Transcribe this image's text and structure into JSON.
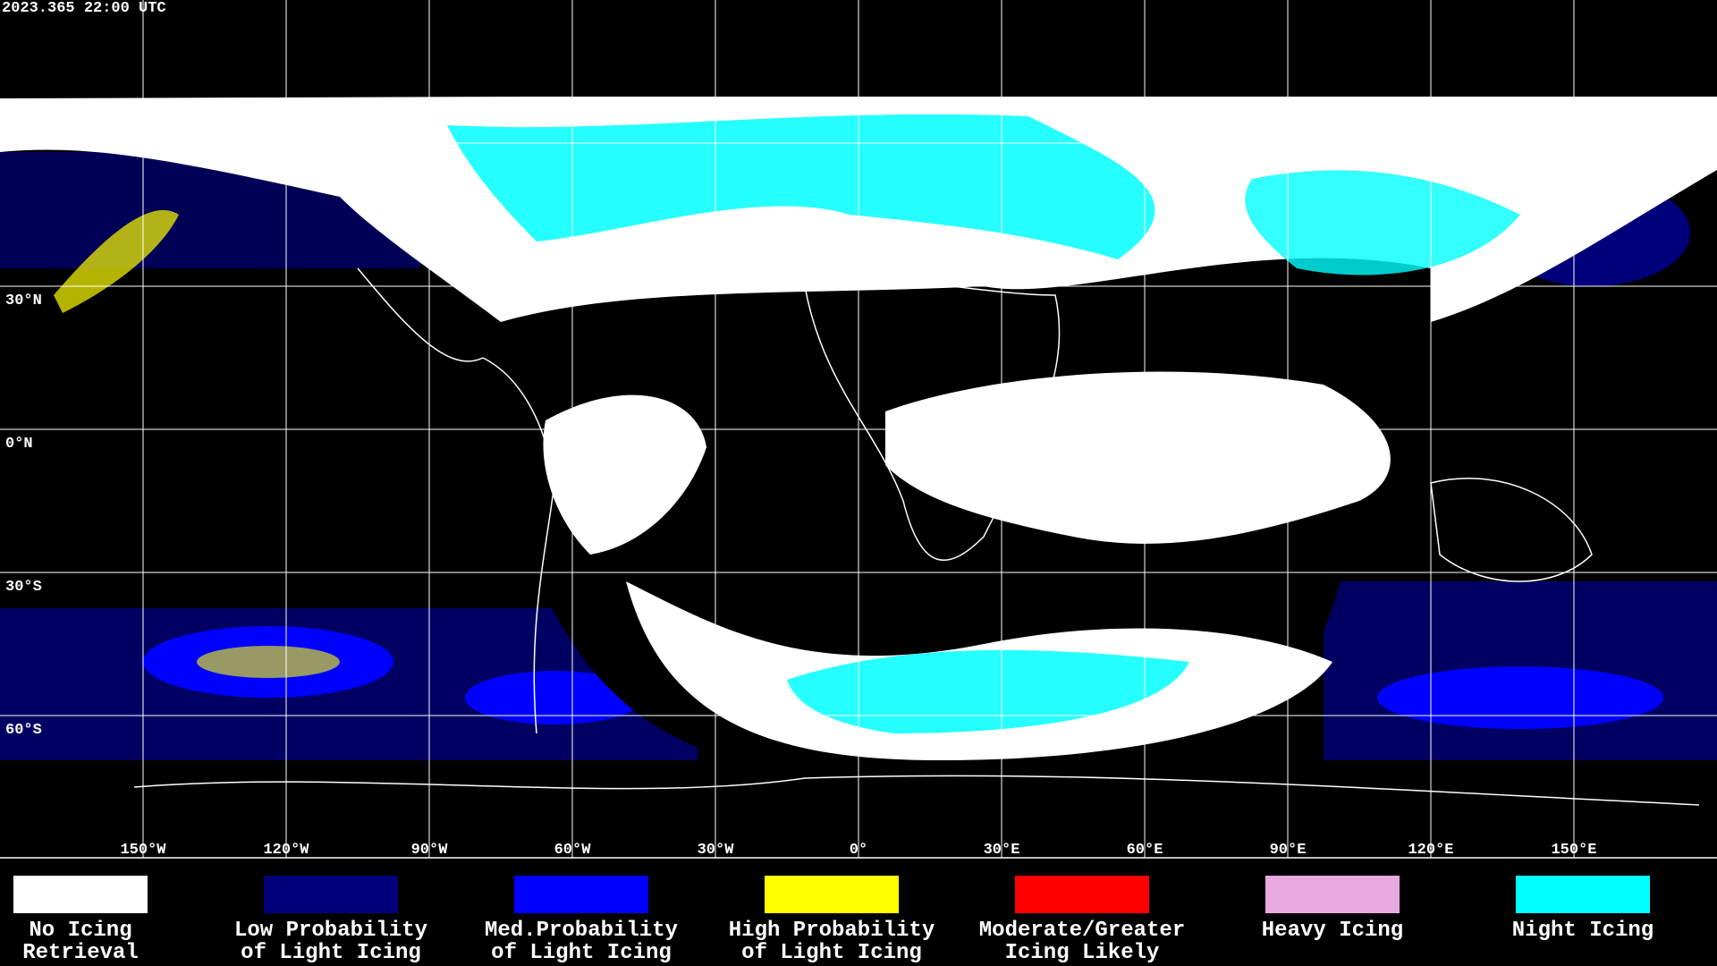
{
  "timestamp": "2023.365 22:00 UTC",
  "latitudes": [
    {
      "value": 60
    },
    {
      "value": 30,
      "label": "30°N"
    },
    {
      "value": 0,
      "label": "0°N"
    },
    {
      "value": -30,
      "label": "30°S"
    },
    {
      "value": -60,
      "label": "60°S"
    }
  ],
  "longitudes": [
    {
      "value": -150,
      "label": "150°W"
    },
    {
      "value": -120,
      "label": "120°W"
    },
    {
      "value": -90,
      "label": "90°W"
    },
    {
      "value": -60,
      "label": "60°W"
    },
    {
      "value": -30,
      "label": "30°W"
    },
    {
      "value": 0,
      "label": "0°"
    },
    {
      "value": 30,
      "label": "30°E"
    },
    {
      "value": 60,
      "label": "60°E"
    },
    {
      "value": 90,
      "label": "90°E"
    },
    {
      "value": 120,
      "label": "120°E"
    },
    {
      "value": 150,
      "label": "150°E"
    }
  ],
  "legend": [
    {
      "lines": [
        "No Icing",
        "Retrieval"
      ],
      "color": "#ffffff"
    },
    {
      "lines": [
        "Low Probability",
        "of Light Icing"
      ],
      "color": "#00007a"
    },
    {
      "lines": [
        "Med.Probability",
        "of Light Icing"
      ],
      "color": "#0000ff"
    },
    {
      "lines": [
        "High Probability",
        "of Light Icing"
      ],
      "color": "#ffff00"
    },
    {
      "lines": [
        "Moderate/Greater",
        "Icing Likely"
      ],
      "color": "#ff0000"
    },
    {
      "lines": [
        "Heavy Icing"
      ],
      "color": "#e8a8e0"
    },
    {
      "lines": [
        "Night Icing"
      ],
      "color": "#00ffff"
    }
  ]
}
